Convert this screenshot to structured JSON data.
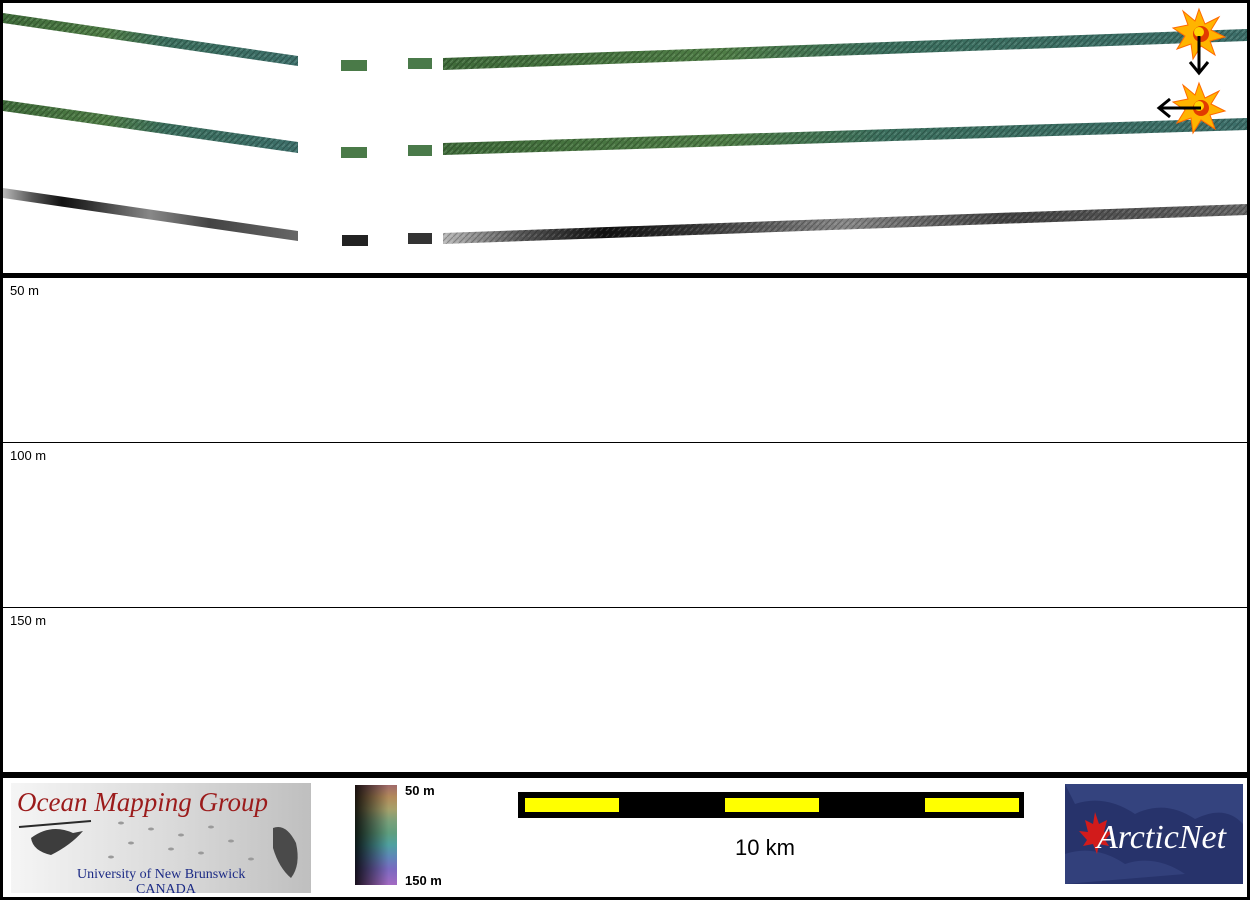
{
  "depth_rows": [
    {
      "label": "50 m"
    },
    {
      "label": "100 m"
    },
    {
      "label": "150 m"
    }
  ],
  "logo_left": {
    "title": "Ocean Mapping Group",
    "line1": "University of New Brunswick",
    "line2": "CANADA"
  },
  "depth_scale": {
    "top": "50 m",
    "bottom": "150 m"
  },
  "scalebar": {
    "label": "10 km"
  },
  "logo_right": {
    "text": "ArcticNet"
  },
  "colors": {
    "scalebar_yellow": "#ffff00",
    "swath_green": "#4e7a44",
    "marker": "#ffb400"
  }
}
